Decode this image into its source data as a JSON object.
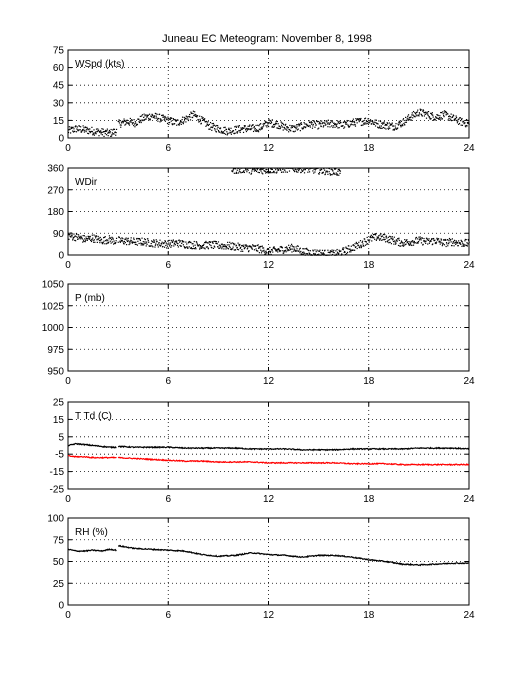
{
  "figure": {
    "title": "Juneau EC Meteogram:  November  8, 1998"
  },
  "chart_data": [
    {
      "type": "scatter",
      "label": "WSpd (kts)",
      "x_range": [
        0,
        24
      ],
      "x_ticks": [
        "0",
        "6",
        "12",
        "18",
        "24"
      ],
      "ylim": [
        0,
        75
      ],
      "y_ticks": [
        "0",
        "15",
        "30",
        "45",
        "60",
        "75"
      ],
      "grid": true,
      "series": [
        {
          "color": "#000000",
          "segments": [
            {
              "t": [
                0.0,
                0.5,
                1.0,
                1.5,
                2.0,
                2.5,
                2.9
              ],
              "v": [
                6,
                8,
                7,
                6,
                5,
                4,
                6
              ]
            },
            {
              "t": [
                3.0,
                3.5,
                4.0,
                4.5,
                5.0,
                5.5,
                6.0,
                6.5,
                7.0,
                7.5,
                8.0,
                8.5,
                9.0,
                9.5,
                10.0,
                10.5,
                11.0,
                11.5,
                12.0,
                12.5,
                13.0,
                13.5,
                14.0,
                14.5,
                15.0,
                15.5,
                16.0,
                16.5,
                17.0,
                17.5,
                18.0,
                18.5,
                19.0,
                19.5,
                20.0,
                20.5,
                21.0,
                21.5,
                22.0,
                22.5,
                23.0,
                23.5,
                24.0
              ],
              "v": [
                12,
                14,
                13,
                17,
                19,
                17,
                15,
                13,
                16,
                20,
                15,
                10,
                8,
                6,
                7,
                8,
                8,
                9,
                13,
                12,
                9,
                8,
                10,
                12,
                11,
                12,
                12,
                11,
                13,
                14,
                15,
                12,
                11,
                10,
                13,
                18,
                22,
                20,
                18,
                20,
                17,
                14,
                12
              ]
            }
          ]
        }
      ]
    },
    {
      "type": "scatter",
      "label": "WDir",
      "x_range": [
        0,
        24
      ],
      "x_ticks": [
        "0",
        "6",
        "12",
        "18",
        "24"
      ],
      "ylim": [
        0,
        360
      ],
      "y_ticks": [
        "0",
        "90",
        "180",
        "270",
        "360"
      ],
      "grid": true,
      "series": [
        {
          "color": "#000000",
          "segments": [
            {
              "t": [
                0.0,
                0.5,
                1.0,
                1.5,
                2.0,
                2.5,
                2.9
              ],
              "v": [
                80,
                75,
                65,
                70,
                60,
                65,
                55
              ]
            },
            {
              "t": [
                3.0,
                3.5,
                4.0,
                4.5,
                5.0,
                5.5,
                6.0,
                6.5,
                7.0,
                7.5,
                8.0,
                8.5,
                9.0,
                9.5,
                10.0,
                10.5,
                11.0,
                11.5,
                12.0,
                12.5,
                13.0,
                13.5,
                14.0,
                14.5,
                15.0,
                15.5,
                16.0,
                16.5,
                17.0,
                17.5,
                18.0,
                18.5,
                19.0,
                19.5,
                20.0,
                20.5,
                21.0,
                21.5,
                22.0,
                22.5,
                23.0,
                23.5,
                24.0
              ],
              "v": [
                60,
                58,
                55,
                55,
                50,
                48,
                45,
                50,
                45,
                42,
                40,
                42,
                40,
                38,
                35,
                30,
                30,
                25,
                15,
                20,
                25,
                30,
                15,
                10,
                8,
                5,
                5,
                15,
                30,
                45,
                65,
                75,
                70,
                60,
                50,
                55,
                60,
                55,
                60,
                50,
                55,
                50,
                48
              ]
            }
          ]
        },
        {
          "color": "#000000",
          "name": "",
          "segments": [
            {
              "t": [
                9.8,
                10.2,
                10.6,
                11.0,
                12.8,
                13.2,
                14.4,
                14.8,
                15.2,
                15.6,
                16.0,
                16.3
              ],
              "v": [
                355,
                352,
                358,
                350,
                356,
                359,
                356,
                353,
                350,
                348,
                345,
                342
              ]
            }
          ]
        }
      ]
    },
    {
      "type": "line",
      "label": "P (mb)",
      "x_range": [
        0,
        24
      ],
      "x_ticks": [
        "0",
        "6",
        "12",
        "18",
        "24"
      ],
      "ylim": [
        950,
        1050
      ],
      "y_ticks": [
        "950",
        "975",
        "1000",
        "1025",
        "1050"
      ],
      "grid": true,
      "series": []
    },
    {
      "type": "line",
      "label": "T Td (C)",
      "x_range": [
        0,
        24
      ],
      "x_ticks": [
        "0",
        "6",
        "12",
        "18",
        "24"
      ],
      "ylim": [
        -25,
        25
      ],
      "y_ticks": [
        "-25",
        "-15",
        "-5",
        "5",
        "15",
        "25"
      ],
      "grid": true,
      "series": [
        {
          "color": "#000000",
          "segments": [
            {
              "t": [
                0.0,
                0.5,
                1.0,
                1.5,
                2.0,
                2.5,
                2.9
              ],
              "v": [
                0,
                1,
                0.5,
                0,
                -0.5,
                -1,
                -1
              ]
            },
            {
              "t": [
                3.0,
                4.0,
                5.0,
                6.0,
                7.0,
                8.0,
                9.0,
                10.0,
                11.0,
                12.0,
                13.0,
                14.0,
                15.0,
                16.0,
                17.0,
                18.0,
                19.0,
                20.0,
                21.0,
                22.0,
                23.0,
                24.0
              ],
              "v": [
                -0.5,
                -1,
                -1,
                -1,
                -1.5,
                -1.5,
                -1.5,
                -1.5,
                -2,
                -2,
                -2,
                -2.5,
                -2.5,
                -2.5,
                -2,
                -2,
                -2,
                -2,
                -1.5,
                -1.5,
                -1.5,
                -2
              ]
            }
          ]
        },
        {
          "color": "#ff0000",
          "segments": [
            {
              "t": [
                0.0,
                0.5,
                1.0,
                1.5,
                2.0,
                2.5,
                2.9
              ],
              "v": [
                -6,
                -6.5,
                -6.5,
                -7,
                -7,
                -7,
                -7
              ]
            },
            {
              "t": [
                3.0,
                4.0,
                5.0,
                6.0,
                7.0,
                8.0,
                9.0,
                10.0,
                11.0,
                12.0,
                13.0,
                14.0,
                15.0,
                16.0,
                17.0,
                18.0,
                19.0,
                20.0,
                21.0,
                22.0,
                23.0,
                24.0
              ],
              "v": [
                -7,
                -7.5,
                -8,
                -8.5,
                -9,
                -9,
                -9.5,
                -9.5,
                -9.5,
                -10,
                -10,
                -10,
                -10,
                -10,
                -10.5,
                -10.5,
                -10.5,
                -11,
                -11,
                -11,
                -11,
                -11
              ]
            }
          ]
        }
      ]
    },
    {
      "type": "line",
      "label": "RH (%)",
      "x_range": [
        0,
        24
      ],
      "x_ticks": [
        "0",
        "6",
        "12",
        "18",
        "24"
      ],
      "ylim": [
        0,
        100
      ],
      "y_ticks": [
        "0",
        "25",
        "50",
        "75",
        "100"
      ],
      "grid": true,
      "series": [
        {
          "color": "#000000",
          "segments": [
            {
              "t": [
                0.0,
                0.5,
                1.0,
                1.5,
                2.0,
                2.5,
                2.9
              ],
              "v": [
                64,
                62,
                62,
                63,
                62,
                64,
                63
              ]
            },
            {
              "t": [
                3.0,
                4.0,
                5.0,
                6.0,
                7.0,
                8.0,
                9.0,
                10.0,
                11.0,
                12.0,
                13.0,
                14.0,
                15.0,
                16.0,
                17.0,
                18.0,
                19.0,
                20.0,
                21.0,
                22.0,
                23.0,
                24.0
              ],
              "v": [
                68,
                65,
                64,
                63,
                62,
                58,
                56,
                57,
                60,
                58,
                57,
                55,
                57,
                57,
                55,
                52,
                50,
                47,
                46,
                47,
                48,
                48
              ]
            }
          ]
        }
      ]
    }
  ]
}
